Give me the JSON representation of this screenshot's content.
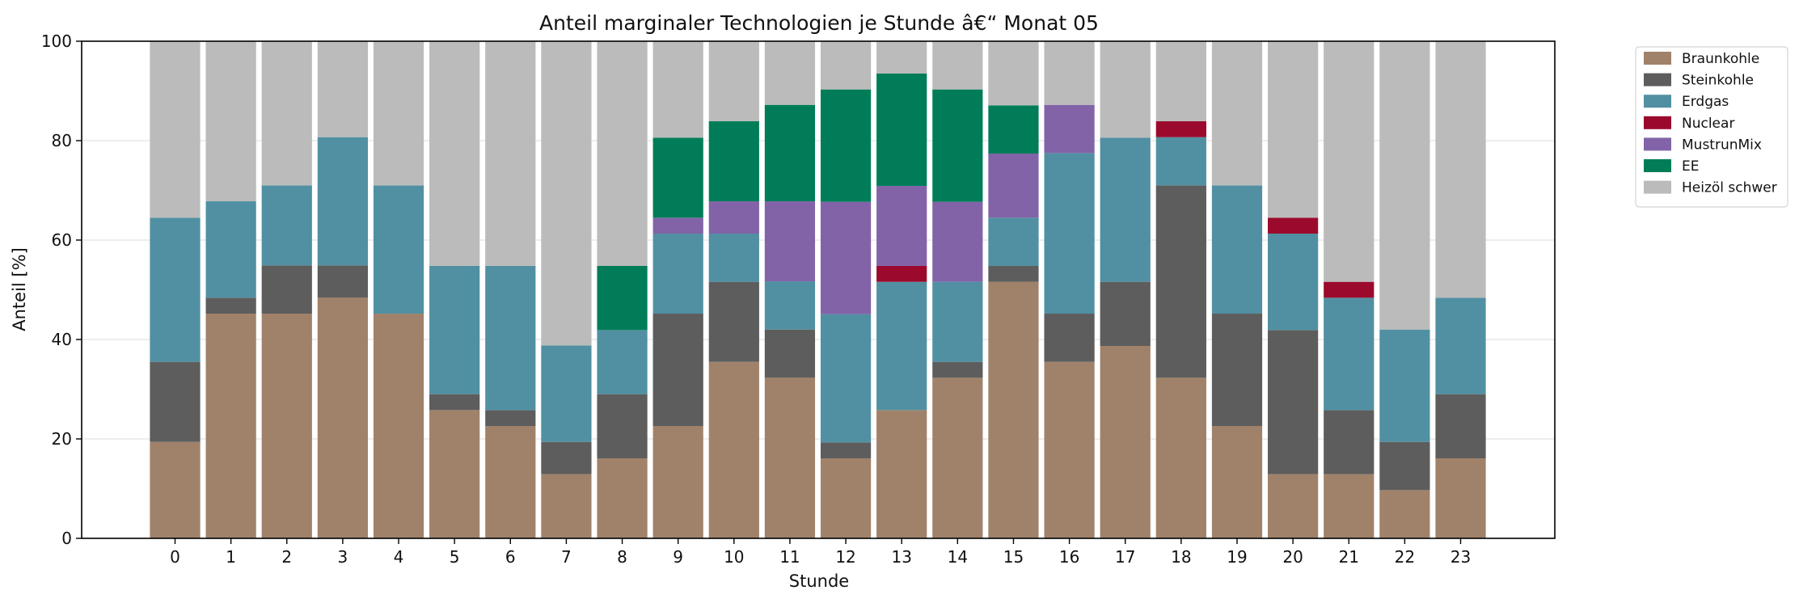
{
  "chart_data": {
    "type": "bar",
    "stacked": true,
    "title": "Anteil marginaler Technologien je Stunde â€“ Monat 05",
    "xlabel": "Stunde",
    "ylabel": "Anteil [%]",
    "ylim": [
      0,
      100
    ],
    "yticks": [
      0,
      20,
      40,
      60,
      80,
      100
    ],
    "grid": "horizontal",
    "legend_position": "outside-top-right",
    "categories": [
      "0",
      "1",
      "2",
      "3",
      "4",
      "5",
      "6",
      "7",
      "8",
      "9",
      "10",
      "11",
      "12",
      "13",
      "14",
      "15",
      "16",
      "17",
      "18",
      "19",
      "20",
      "21",
      "22",
      "23"
    ],
    "series": [
      {
        "name": "Braunkohle",
        "color": "#a0826a",
        "values": [
          19.4,
          45.2,
          45.2,
          48.4,
          45.2,
          25.8,
          22.6,
          12.9,
          16.1,
          22.6,
          35.5,
          32.3,
          16.1,
          25.8,
          32.3,
          51.6,
          35.5,
          38.7,
          32.3,
          22.6,
          12.9,
          12.9,
          9.7,
          16.1
        ]
      },
      {
        "name": "Steinkohle",
        "color": "#5d5d5d",
        "values": [
          16.1,
          3.2,
          9.7,
          6.5,
          0,
          3.2,
          3.2,
          6.5,
          12.9,
          22.6,
          16.1,
          9.7,
          3.2,
          0,
          3.2,
          3.2,
          9.7,
          12.9,
          38.7,
          22.6,
          29.0,
          12.9,
          9.7,
          12.9
        ]
      },
      {
        "name": "Erdgas",
        "color": "#5190a2",
        "values": [
          29.0,
          19.4,
          16.1,
          25.8,
          25.8,
          25.8,
          29.0,
          19.4,
          12.9,
          16.1,
          9.7,
          9.7,
          25.8,
          25.8,
          16.1,
          9.7,
          32.3,
          29.0,
          9.7,
          25.8,
          19.4,
          22.6,
          22.6,
          19.4
        ]
      },
      {
        "name": "Nuclear",
        "color": "#9b0a2c",
        "values": [
          0,
          0,
          0,
          0,
          0,
          0,
          0,
          0,
          0,
          0,
          0,
          0,
          0,
          3.2,
          0,
          0,
          0,
          0,
          3.2,
          0,
          3.2,
          3.2,
          0,
          0
        ]
      },
      {
        "name": "MustrunMix",
        "color": "#8263a8",
        "values": [
          0,
          0,
          0,
          0,
          0,
          0,
          0,
          0,
          0,
          3.2,
          6.5,
          16.1,
          22.6,
          16.1,
          16.1,
          12.9,
          9.7,
          0,
          0,
          0,
          0,
          0,
          0,
          0
        ]
      },
      {
        "name": "EE",
        "color": "#007d58",
        "values": [
          0,
          0,
          0,
          0,
          0,
          0,
          0,
          0,
          12.9,
          16.1,
          16.1,
          19.4,
          22.6,
          22.6,
          22.6,
          9.7,
          0,
          0,
          0,
          0,
          0,
          0,
          0,
          0
        ]
      },
      {
        "name": "Heizöl schwer",
        "color": "#bbbbbb",
        "values": [
          35.5,
          32.3,
          29.0,
          19.4,
          29.0,
          45.2,
          45.2,
          61.3,
          45.2,
          19.4,
          16.1,
          12.9,
          9.7,
          6.5,
          9.7,
          12.9,
          12.9,
          19.4,
          16.1,
          29.0,
          35.5,
          48.4,
          58.1,
          51.6
        ]
      }
    ]
  }
}
